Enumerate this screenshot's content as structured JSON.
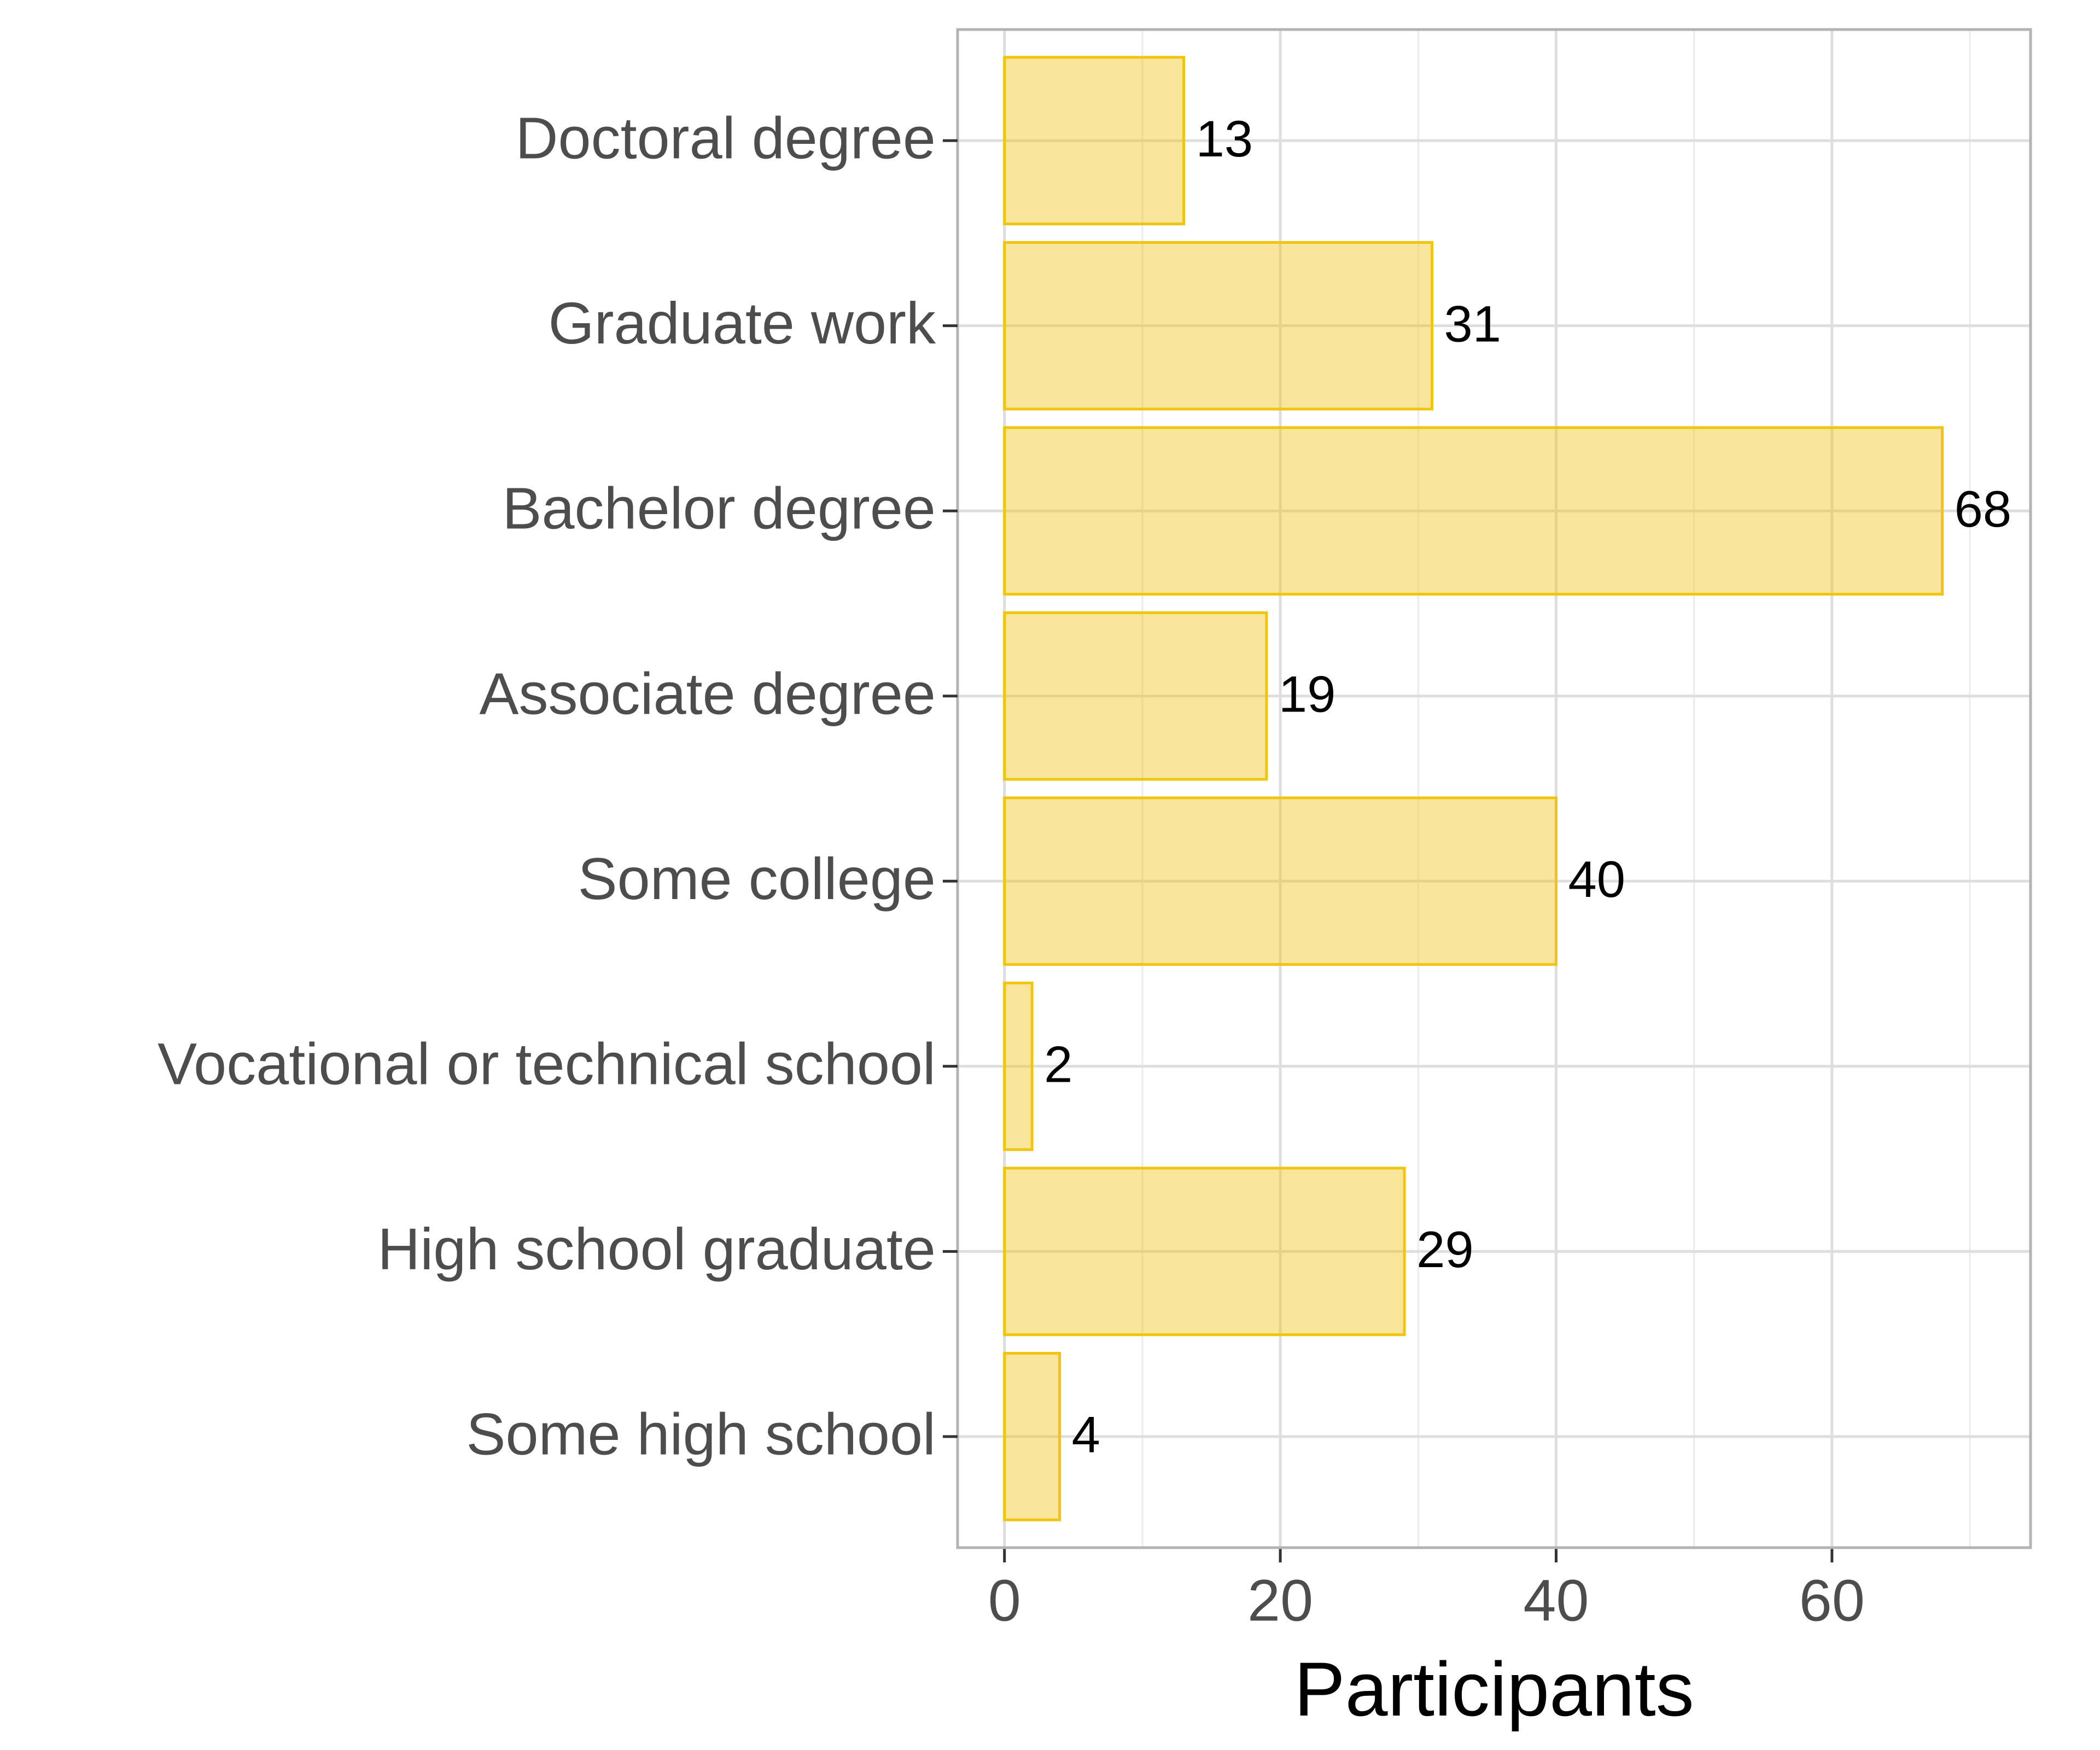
{
  "chart_data": {
    "type": "bar",
    "orientation": "horizontal",
    "x_label": "Participants",
    "categories": [
      "Doctoral degree",
      "Graduate work",
      "Bachelor degree",
      "Associate degree",
      "Some college",
      "Vocational or technical school",
      "High school graduate",
      "Some high school"
    ],
    "values": [
      13,
      31,
      68,
      19,
      40,
      2,
      29,
      4
    ],
    "color": "#f1c40f",
    "xlim": [
      -3.4,
      74.4
    ],
    "xticks": [
      0,
      20,
      40,
      60
    ],
    "x_minor_gridlines": [
      10,
      30,
      50,
      70
    ],
    "grid": true
  }
}
